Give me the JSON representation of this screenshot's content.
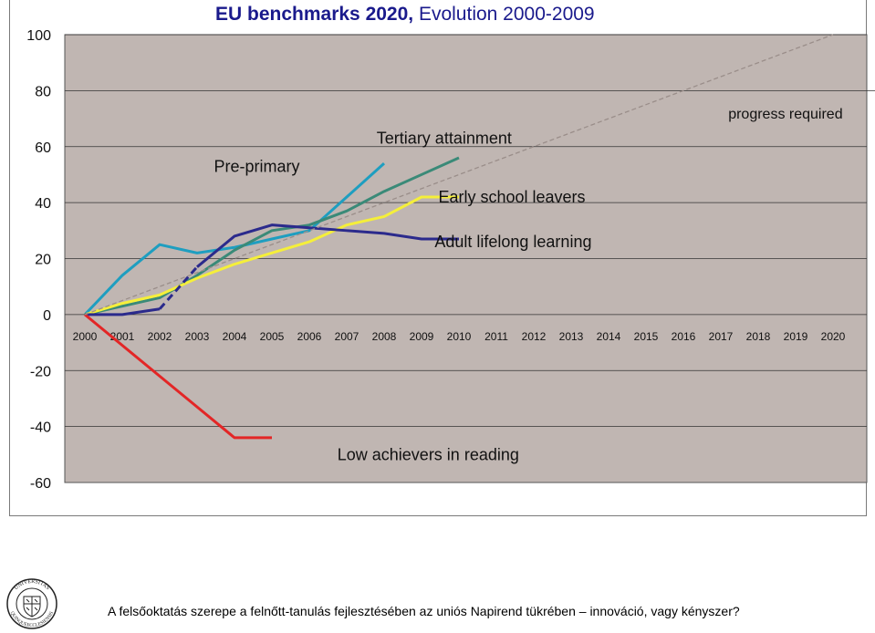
{
  "title": {
    "bold": "EU benchmarks 2020,",
    "rest": " Evolution 2000-2009"
  },
  "footer": "A felsőoktatás szerepe a felnőtt-tanulás fejlesztésében az uniós Napirend tükrében – innováció, vagy kényszer?",
  "seal": {
    "top_text": "UNIVERSITAS",
    "bottom_text": "QUINQUEECCLESIENSIS"
  },
  "chart_data": {
    "type": "line",
    "title": "EU benchmarks 2020, Evolution 2000-2009",
    "xlabel": "",
    "ylabel": "",
    "x": [
      2000,
      2001,
      2002,
      2003,
      2004,
      2005,
      2006,
      2007,
      2008,
      2009,
      2010,
      2011,
      2012,
      2013,
      2014,
      2015,
      2016,
      2017,
      2018,
      2019,
      2020
    ],
    "x_tick_labels": [
      "2000",
      "2001",
      "2002",
      "2003",
      "2004",
      "2005",
      "2006",
      "2007",
      "2008",
      "2009",
      "2010",
      "2011",
      "2012",
      "2013",
      "2014",
      "2015",
      "2016",
      "2017",
      "2018",
      "2019",
      "2020"
    ],
    "y_ticks": [
      100,
      80,
      60,
      40,
      20,
      0,
      -20,
      -40,
      -60
    ],
    "ylim": [
      -60,
      100
    ],
    "xlim": [
      2000,
      2020
    ],
    "grid": "horizontal",
    "plot_background": "#c0b6b2",
    "series": [
      {
        "name": "Pre-primary",
        "color": "#1e9ec0",
        "points": [
          [
            2000,
            0
          ],
          [
            2001,
            14
          ],
          [
            2002,
            25
          ],
          [
            2003,
            22
          ],
          [
            2004,
            24
          ],
          [
            2005,
            27
          ],
          [
            2006,
            30
          ],
          [
            2007,
            42
          ],
          [
            2008,
            54
          ]
        ],
        "label_anchor": [
          2003.45,
          51
        ]
      },
      {
        "name": "Tertiary attainment",
        "color": "#3a8a78",
        "points": [
          [
            2000,
            0
          ],
          [
            2001,
            3
          ],
          [
            2002,
            6
          ],
          [
            2003,
            14
          ],
          [
            2004,
            23
          ],
          [
            2005,
            30
          ],
          [
            2006,
            32
          ],
          [
            2007,
            37
          ],
          [
            2008,
            44
          ],
          [
            2009,
            50
          ],
          [
            2010,
            56
          ]
        ],
        "label_anchor": [
          2007.8,
          61
        ]
      },
      {
        "name": "Early school leavers",
        "color": "#f5ef3a",
        "points": [
          [
            2000,
            0
          ],
          [
            2001,
            4
          ],
          [
            2002,
            7
          ],
          [
            2003,
            13
          ],
          [
            2004,
            18
          ],
          [
            2005,
            22
          ],
          [
            2006,
            26
          ],
          [
            2007,
            32
          ],
          [
            2008,
            35
          ],
          [
            2009,
            42
          ],
          [
            2010,
            42
          ]
        ],
        "label_anchor": [
          2009.45,
          40
        ]
      },
      {
        "name": "Adult lifelong learning",
        "color": "#2b2a8c",
        "points": [
          [
            2000,
            0
          ],
          [
            2001,
            0
          ],
          [
            2002,
            2
          ],
          [
            2003,
            17
          ],
          [
            2004,
            28
          ],
          [
            2005,
            32
          ],
          [
            2006,
            31
          ],
          [
            2007,
            30
          ],
          [
            2008,
            29
          ],
          [
            2009,
            27
          ],
          [
            2010,
            27
          ]
        ],
        "dashed_segment": [
          2002,
          2003
        ],
        "label_anchor": [
          2009.35,
          24
        ]
      },
      {
        "name": "Low achievers in reading",
        "color": "#e32626",
        "points": [
          [
            2000,
            0
          ],
          [
            2001,
            -11
          ],
          [
            2002,
            -22
          ],
          [
            2003,
            -33
          ],
          [
            2004,
            -44
          ],
          [
            2005,
            -44
          ]
        ],
        "label_anchor": [
          2006.75,
          -52
        ]
      },
      {
        "name": "progress required",
        "color": "#9a8e8a",
        "dashed": true,
        "points": [
          [
            2000,
            0
          ],
          [
            2020,
            100
          ]
        ],
        "label_anchor": [
          2017.2,
          70
        ]
      }
    ]
  }
}
